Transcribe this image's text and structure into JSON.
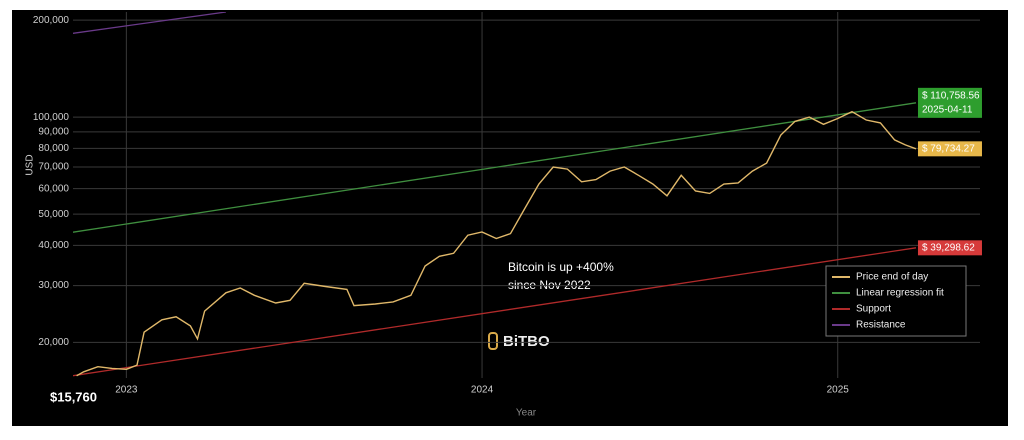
{
  "chart_data": {
    "type": "line",
    "y_label": "USD",
    "x_label": "Year",
    "log_y": true,
    "grid": true,
    "legend_position": "lower right",
    "xlim": [
      2022.85,
      2025.4
    ],
    "xticks": [
      2023,
      2024,
      2025
    ],
    "ylim": [
      15500,
      212000
    ],
    "yticks": [
      {
        "value": 20000,
        "label": "20,000"
      },
      {
        "value": 30000,
        "label": "30,000"
      },
      {
        "value": 40000,
        "label": "40,000"
      },
      {
        "value": 50000,
        "label": "50,000"
      },
      {
        "value": 60000,
        "label": "60,000"
      },
      {
        "value": 70000,
        "label": "70,000"
      },
      {
        "value": 80000,
        "label": "80,000"
      },
      {
        "value": 90000,
        "label": "90,000"
      },
      {
        "value": 100000,
        "label": "100,000"
      },
      {
        "value": 200000,
        "label": "200,000"
      }
    ],
    "series": [
      {
        "name": "Price end of day",
        "color": "#e0b86a",
        "x": [
          2022.86,
          2022.88,
          2022.92,
          2022.96,
          2023.0,
          2023.03,
          2023.05,
          2023.1,
          2023.14,
          2023.18,
          2023.2,
          2023.22,
          2023.28,
          2023.32,
          2023.36,
          2023.42,
          2023.46,
          2023.5,
          2023.56,
          2023.62,
          2023.64,
          2023.7,
          2023.75,
          2023.8,
          2023.84,
          2023.88,
          2023.92,
          2023.96,
          2024.0,
          2024.04,
          2024.08,
          2024.12,
          2024.16,
          2024.2,
          2024.24,
          2024.28,
          2024.32,
          2024.36,
          2024.4,
          2024.44,
          2024.48,
          2024.52,
          2024.56,
          2024.6,
          2024.64,
          2024.68,
          2024.72,
          2024.76,
          2024.8,
          2024.84,
          2024.88,
          2024.92,
          2024.96,
          2025.0,
          2025.04,
          2025.08,
          2025.12,
          2025.16,
          2025.19,
          2025.22
        ],
        "values": [
          15760,
          16200,
          16800,
          16600,
          16500,
          17000,
          21500,
          23500,
          24000,
          22500,
          20500,
          25000,
          28500,
          29500,
          28000,
          26500,
          27000,
          30500,
          29800,
          29200,
          26000,
          26300,
          26700,
          28000,
          34500,
          37000,
          37800,
          43000,
          44000,
          42000,
          43500,
          52000,
          62000,
          70000,
          69000,
          63000,
          64000,
          68000,
          70000,
          66000,
          62000,
          57000,
          66000,
          59000,
          58000,
          62000,
          62500,
          68000,
          72000,
          88000,
          97000,
          100000,
          95000,
          99000,
          104000,
          98000,
          96000,
          85000,
          82000,
          79734.27
        ]
      },
      {
        "name": "Linear regression fit",
        "color": "#3f8f3f",
        "x": [
          2022.85,
          2025.22
        ],
        "values": [
          43950,
          110758.56
        ]
      },
      {
        "name": "Support",
        "color": "#b02a2a",
        "x": [
          2022.85,
          2025.22
        ],
        "values": [
          15760,
          39298.62
        ]
      },
      {
        "name": "Resistance",
        "color": "#6a3a8a",
        "x": [
          2022.85,
          2023.28
        ],
        "values": [
          182000,
          212000
        ]
      }
    ],
    "end_labels": [
      {
        "series": 1,
        "text": "$ 110,758.56",
        "subtext": "2025-04-11",
        "color": "#2e9e2e"
      },
      {
        "series": 0,
        "text": "$ 79,734.27",
        "color": "#e8b84a"
      },
      {
        "series": 2,
        "text": "$ 39,298.62",
        "color": "#d63a3a"
      }
    ],
    "start_label": "$15,760",
    "annotation": [
      "Bitcoin is up +400%",
      "since Nov 2022"
    ],
    "watermark": "BiTBO"
  }
}
